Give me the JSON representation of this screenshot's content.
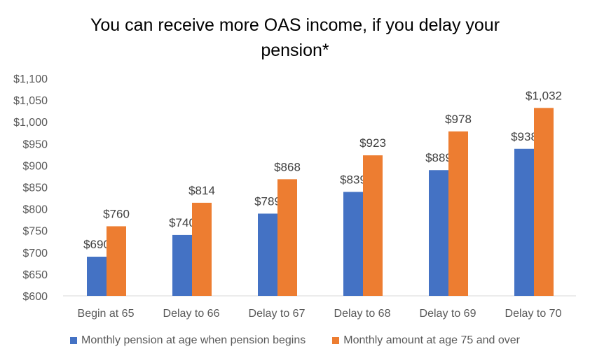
{
  "chart_data": {
    "type": "bar",
    "title_line1": "You can receive more OAS income, if you delay your",
    "title_line2": "pension*",
    "categories": [
      "Begin at 65",
      "Delay to 66",
      "Delay to 67",
      "Delay to 68",
      "Delay to 69",
      "Delay to 70"
    ],
    "series": [
      {
        "name": "Monthly pension at age when pension begins",
        "color": "#4472C4",
        "values": [
          690,
          740,
          789,
          839,
          889,
          938
        ],
        "labels": [
          "$690",
          "$740",
          "$789",
          "$839",
          "$889",
          "$938"
        ]
      },
      {
        "name": "Monthly amount at age 75 and over",
        "color": "#ED7D31",
        "values": [
          760,
          814,
          868,
          923,
          978,
          1032
        ],
        "labels": [
          "$760",
          "$814",
          "$868",
          "$923",
          "$978",
          "$1,032"
        ]
      }
    ],
    "ylim": [
      600,
      1100
    ],
    "yticks": [
      600,
      650,
      700,
      750,
      800,
      850,
      900,
      950,
      1000,
      1050,
      1100
    ],
    "ytick_labels": [
      "$600",
      "$650",
      "$700",
      "$750",
      "$800",
      "$850",
      "$900",
      "$950",
      "$1,000",
      "$1,050",
      "$1,100"
    ],
    "grid": false,
    "legend_position": "bottom"
  }
}
